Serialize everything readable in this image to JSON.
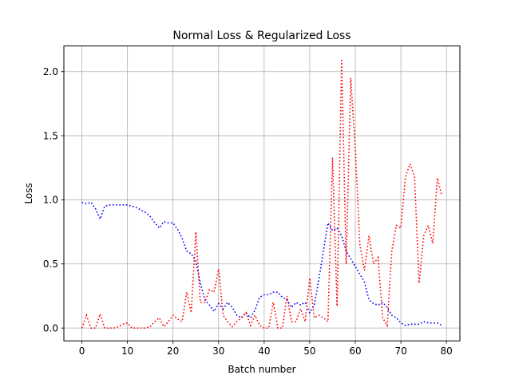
{
  "chart_data": {
    "type": "line",
    "title": "Normal Loss & Regularized Loss",
    "xlabel": "Batch number",
    "ylabel": "Loss",
    "xlim": [
      -3.95,
      82.95
    ],
    "ylim": [
      -0.1,
      2.2
    ],
    "xticks": [
      0,
      10,
      20,
      30,
      40,
      50,
      60,
      70,
      80
    ],
    "yticks": [
      0.0,
      0.5,
      1.0,
      1.5,
      2.0
    ],
    "xtick_labels": [
      "0",
      "10",
      "20",
      "30",
      "40",
      "50",
      "60",
      "70",
      "80"
    ],
    "ytick_labels": [
      "0.0",
      "0.5",
      "1.0",
      "1.5",
      "2.0"
    ],
    "grid": true,
    "series": [
      {
        "color": "#0000ff",
        "linestyle": "dotted",
        "x": [
          0,
          1,
          2,
          3,
          4,
          5,
          6,
          7,
          8,
          9,
          10,
          11,
          12,
          13,
          14,
          15,
          16,
          17,
          18,
          19,
          20,
          21,
          22,
          23,
          24,
          25,
          26,
          27,
          28,
          29,
          30,
          31,
          32,
          33,
          34,
          35,
          36,
          37,
          38,
          39,
          40,
          41,
          42,
          43,
          44,
          45,
          46,
          47,
          48,
          49,
          50,
          51,
          52,
          53,
          54,
          55,
          56,
          57,
          58,
          59,
          60,
          61,
          62,
          63,
          64,
          65,
          66,
          67,
          68,
          69,
          70,
          71,
          72,
          73,
          74,
          75,
          76,
          77,
          78,
          79
        ],
        "y": [
          0.98,
          0.97,
          0.98,
          0.93,
          0.85,
          0.95,
          0.96,
          0.96,
          0.96,
          0.96,
          0.96,
          0.95,
          0.94,
          0.92,
          0.9,
          0.87,
          0.82,
          0.78,
          0.83,
          0.82,
          0.82,
          0.77,
          0.7,
          0.6,
          0.58,
          0.52,
          0.35,
          0.22,
          0.18,
          0.13,
          0.19,
          0.15,
          0.2,
          0.16,
          0.1,
          0.08,
          0.12,
          0.08,
          0.14,
          0.24,
          0.26,
          0.26,
          0.28,
          0.28,
          0.24,
          0.22,
          0.16,
          0.2,
          0.18,
          0.2,
          0.12,
          0.18,
          0.38,
          0.6,
          0.82,
          0.76,
          0.78,
          0.72,
          0.6,
          0.54,
          0.48,
          0.42,
          0.36,
          0.22,
          0.19,
          0.18,
          0.2,
          0.16,
          0.1,
          0.08,
          0.04,
          0.02,
          0.03,
          0.03,
          0.03,
          0.05,
          0.04,
          0.04,
          0.04,
          0.02
        ]
      },
      {
        "color": "#ff0000",
        "linestyle": "dotted",
        "x": [
          0,
          1,
          2,
          3,
          4,
          5,
          6,
          7,
          8,
          9,
          10,
          11,
          12,
          13,
          14,
          15,
          16,
          17,
          18,
          19,
          20,
          21,
          22,
          23,
          24,
          25,
          26,
          27,
          28,
          29,
          30,
          31,
          32,
          33,
          34,
          35,
          36,
          37,
          38,
          39,
          40,
          41,
          42,
          43,
          44,
          45,
          46,
          47,
          48,
          49,
          50,
          51,
          52,
          53,
          54,
          55,
          56,
          57,
          58,
          59,
          60,
          61,
          62,
          63,
          64,
          65,
          66,
          67,
          68,
          69,
          70,
          71,
          72,
          73,
          74,
          75,
          76,
          77,
          78,
          79
        ],
        "y": [
          0.0,
          0.1,
          0.0,
          0.0,
          0.11,
          0.0,
          0.0,
          0.0,
          0.01,
          0.03,
          0.04,
          0.0,
          0.0,
          0.0,
          0.0,
          0.01,
          0.05,
          0.08,
          0.01,
          0.05,
          0.1,
          0.07,
          0.05,
          0.28,
          0.12,
          0.75,
          0.2,
          0.2,
          0.3,
          0.28,
          0.46,
          0.1,
          0.05,
          0.01,
          0.05,
          0.08,
          0.12,
          0.02,
          0.1,
          0.02,
          0.0,
          0.0,
          0.2,
          0.0,
          0.0,
          0.25,
          0.05,
          0.05,
          0.15,
          0.05,
          0.39,
          0.08,
          0.1,
          0.08,
          0.05,
          1.33,
          0.17,
          2.1,
          0.5,
          1.95,
          1.4,
          0.65,
          0.45,
          0.72,
          0.5,
          0.55,
          0.08,
          0.02,
          0.6,
          0.8,
          0.78,
          1.18,
          1.28,
          1.18,
          0.35,
          0.72,
          0.8,
          0.66,
          1.17,
          1.03
        ]
      }
    ]
  }
}
